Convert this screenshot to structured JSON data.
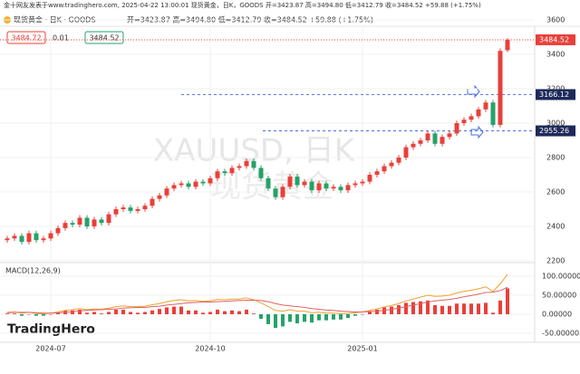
{
  "header": {
    "caption": "金十网友发表于www.tradinghero.com, 2025-04-22 13:00:01 现货黄金，日K，GOODS 开=3423.87 高=3494.80 低=3412.79 收=3484.52 +59.88 (+1.75%)",
    "symbol": "现货黄金 · 日K · GOODS",
    "ohlc_text": "开=3423.87 高=3494.80 低=3412.79 收=3484.52 +59.88 (+1.75%)",
    "boxes": [
      "3484.72",
      "0.01",
      "3484.52"
    ]
  },
  "watermark": {
    "ticker": "XAUUSD, 日K",
    "name": "现货黄金"
  },
  "logo": "TradingHero",
  "chart_data": [
    {
      "type": "candlestick",
      "up_color": "#e8403a",
      "down_color": "#26a269",
      "categories": [
        null,
        null,
        null,
        null,
        null,
        null,
        "2024-07",
        null,
        null,
        null,
        null,
        null,
        null,
        null,
        null,
        null,
        null,
        null,
        null,
        null,
        null,
        null,
        null,
        null,
        null,
        null,
        null,
        null,
        "2024-10",
        null,
        null,
        null,
        null,
        null,
        null,
        null,
        null,
        null,
        null,
        null,
        null,
        null,
        null,
        null,
        null,
        null,
        null,
        null,
        null,
        "2025-01",
        null,
        null,
        null,
        null,
        null,
        null,
        null,
        null,
        null,
        null,
        null,
        null,
        null,
        null,
        null,
        null,
        null,
        null,
        null,
        null
      ],
      "open": [
        2320,
        2330,
        2345,
        2310,
        2360,
        2320,
        2330,
        2360,
        2390,
        2420,
        2410,
        2450,
        2400,
        2440,
        2420,
        2470,
        2500,
        2510,
        2490,
        2500,
        2520,
        2560,
        2580,
        2620,
        2640,
        2650,
        2630,
        2660,
        2650,
        2680,
        2720,
        2710,
        2740,
        2750,
        2780,
        2740,
        2680,
        2620,
        2570,
        2630,
        2690,
        2640,
        2660,
        2610,
        2650,
        2620,
        2630,
        2610,
        2640,
        2650,
        2660,
        2700,
        2720,
        2750,
        2770,
        2800,
        2860,
        2880,
        2900,
        2940,
        2880,
        2920,
        2940,
        3000,
        3020,
        3040,
        3080,
        3120,
        2990,
        3423.87
      ],
      "high": [
        2345,
        2360,
        2360,
        2375,
        2375,
        2345,
        2375,
        2405,
        2435,
        2435,
        2465,
        2465,
        2455,
        2455,
        2485,
        2515,
        2525,
        2525,
        2515,
        2535,
        2575,
        2595,
        2635,
        2655,
        2665,
        2665,
        2675,
        2675,
        2695,
        2735,
        2735,
        2755,
        2765,
        2795,
        2795,
        2755,
        2695,
        2635,
        2645,
        2705,
        2705,
        2675,
        2675,
        2665,
        2665,
        2645,
        2645,
        2655,
        2665,
        2675,
        2715,
        2735,
        2765,
        2785,
        2815,
        2875,
        2895,
        2915,
        2955,
        2955,
        2935,
        2955,
        3015,
        3035,
        3055,
        3095,
        3135,
        3135,
        3435,
        3494.8
      ],
      "low": [
        2305,
        2315,
        2295,
        2295,
        2305,
        2305,
        2315,
        2345,
        2375,
        2395,
        2395,
        2385,
        2385,
        2405,
        2405,
        2455,
        2485,
        2475,
        2475,
        2485,
        2505,
        2545,
        2565,
        2605,
        2625,
        2615,
        2615,
        2635,
        2635,
        2665,
        2695,
        2695,
        2725,
        2735,
        2725,
        2665,
        2605,
        2555,
        2555,
        2615,
        2625,
        2625,
        2595,
        2595,
        2605,
        2605,
        2595,
        2595,
        2625,
        2635,
        2645,
        2685,
        2705,
        2735,
        2755,
        2785,
        2845,
        2865,
        2885,
        2865,
        2865,
        2905,
        2925,
        2985,
        3005,
        3025,
        3065,
        2975,
        2975,
        3412.79
      ],
      "close": [
        2330,
        2345,
        2310,
        2360,
        2320,
        2330,
        2360,
        2390,
        2420,
        2410,
        2450,
        2400,
        2440,
        2420,
        2470,
        2500,
        2510,
        2490,
        2500,
        2520,
        2560,
        2580,
        2620,
        2640,
        2650,
        2630,
        2660,
        2650,
        2680,
        2720,
        2710,
        2740,
        2750,
        2780,
        2740,
        2680,
        2620,
        2570,
        2630,
        2690,
        2640,
        2660,
        2610,
        2650,
        2620,
        2630,
        2610,
        2640,
        2650,
        2660,
        2700,
        2720,
        2750,
        2770,
        2800,
        2860,
        2880,
        2900,
        2940,
        2880,
        2920,
        2940,
        3000,
        3020,
        3040,
        3080,
        3120,
        2990,
        3420,
        3484.52
      ],
      "ylim": [
        2200,
        3600
      ],
      "yticks": [
        2200,
        2400,
        2600,
        2800,
        3000,
        3200,
        3400,
        3600
      ],
      "grid": true,
      "price_lines": [
        {
          "value": 3484.52,
          "color": "#e8403a"
        },
        {
          "value": 3166.12,
          "color": "#1e2a5a"
        },
        {
          "value": 2955.26,
          "color": "#1e2a5a"
        }
      ]
    },
    {
      "type": "macd",
      "title": "MACD(12,26,9)",
      "series": [
        {
          "name": "DIF",
          "color": "#f0a030",
          "values": [
            5,
            6,
            3,
            5,
            2,
            1,
            3,
            6,
            10,
            12,
            15,
            12,
            14,
            13,
            16,
            20,
            22,
            20,
            20,
            21,
            25,
            28,
            33,
            36,
            38,
            35,
            36,
            34,
            35,
            39,
            38,
            40,
            40,
            43,
            38,
            30,
            20,
            10,
            8,
            12,
            8,
            8,
            4,
            5,
            3,
            3,
            1,
            2,
            4,
            6,
            10,
            14,
            19,
            23,
            28,
            35,
            40,
            45,
            50,
            47,
            48,
            50,
            56,
            60,
            63,
            67,
            72,
            60,
            80,
            105
          ]
        },
        {
          "name": "DEA",
          "color": "#e06060",
          "values": [
            4,
            5,
            5,
            5,
            4,
            3,
            3,
            4,
            5,
            7,
            9,
            10,
            11,
            12,
            13,
            14,
            16,
            17,
            18,
            18,
            20,
            21,
            24,
            26,
            28,
            30,
            31,
            32,
            32,
            33,
            34,
            35,
            36,
            37,
            37,
            36,
            33,
            28,
            24,
            22,
            20,
            18,
            15,
            13,
            11,
            10,
            8,
            7,
            6,
            6,
            7,
            8,
            10,
            13,
            16,
            20,
            24,
            28,
            32,
            35,
            37,
            39,
            42,
            46,
            49,
            53,
            57,
            58,
            62,
            71
          ]
        }
      ],
      "histogram": [
        2,
        2,
        -4,
        0,
        -4,
        -4,
        0,
        4,
        10,
        10,
        12,
        4,
        6,
        2,
        6,
        12,
        12,
        6,
        4,
        6,
        10,
        14,
        18,
        20,
        20,
        10,
        10,
        4,
        6,
        12,
        8,
        10,
        8,
        12,
        2,
        -12,
        -26,
        -36,
        -32,
        -20,
        -24,
        -20,
        -22,
        -16,
        -16,
        -14,
        -14,
        -10,
        -4,
        0,
        6,
        12,
        18,
        20,
        24,
        30,
        32,
        34,
        36,
        24,
        22,
        22,
        28,
        28,
        28,
        28,
        30,
        4,
        36,
        68
      ],
      "ylim": [
        -50,
        100
      ],
      "yticks": [
        {
          "value": 100,
          "label": "100.00000"
        },
        {
          "value": 50,
          "label": "50.00000"
        },
        {
          "value": 0,
          "label": "0.00000"
        },
        {
          "value": -50,
          "label": "-50.00000"
        }
      ]
    }
  ]
}
